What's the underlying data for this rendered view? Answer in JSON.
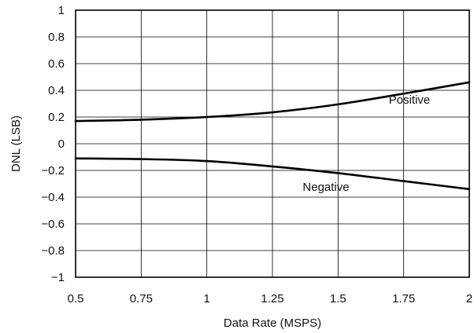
{
  "chart_data": {
    "type": "line",
    "title": "",
    "xlabel": "Data Rate (MSPS)",
    "ylabel": "DNL (LSB)",
    "xlim": [
      0.5,
      2
    ],
    "ylim": [
      -1,
      1
    ],
    "grid": true,
    "x_ticks": [
      "0.5",
      "0.75",
      "1",
      "1.25",
      "1.5",
      "1.75",
      "2"
    ],
    "y_ticks": [
      "1",
      "0.8",
      "0.6",
      "0.4",
      "0.2",
      "0",
      "−0.2",
      "−0.4",
      "−0.6",
      "−0.8",
      "−1"
    ],
    "series": [
      {
        "name": "Positive",
        "color": "#000000",
        "x": [
          0.5,
          0.75,
          1.0,
          1.25,
          1.5,
          1.75,
          2.0
        ],
        "y": [
          0.17,
          0.18,
          0.2,
          0.235,
          0.295,
          0.375,
          0.46
        ]
      },
      {
        "name": "Negative",
        "color": "#000000",
        "x": [
          0.5,
          0.75,
          1.0,
          1.25,
          1.5,
          1.75,
          2.0
        ],
        "y": [
          -0.11,
          -0.115,
          -0.13,
          -0.17,
          -0.22,
          -0.28,
          -0.34
        ]
      }
    ]
  }
}
